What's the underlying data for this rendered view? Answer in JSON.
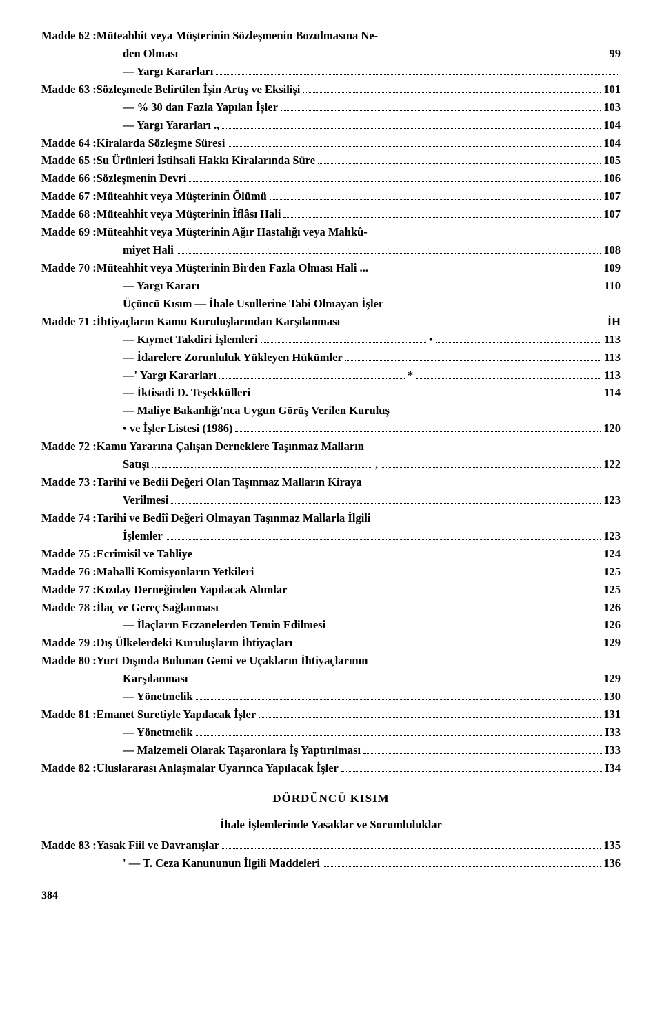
{
  "entries": [
    {
      "type": "two-line",
      "label": "Madde 62 :",
      "text": "Müteahhit veya Müşterinin Sözleşmenin Bozulmasına Ne-",
      "text2": "den Olması",
      "page": "99",
      "indent": 0
    },
    {
      "type": "sub",
      "text": "— Yargı Kararları",
      "page": "",
      "indent": 1
    },
    {
      "type": "row",
      "label": "Madde 63 :",
      "text": "Sözleşmede Belirtilen İşin Artış ve Eksilişi",
      "page": "101",
      "indent": 0
    },
    {
      "type": "sub",
      "text": "— % 30 dan Fazla Yapılan İşler",
      "page": "103",
      "indent": 1
    },
    {
      "type": "sub",
      "text": "— Yargı Yararları .,",
      "page": "104",
      "indent": 1
    },
    {
      "type": "row",
      "label": "Madde 64 :",
      "text": "Kiralarda Sözleşme Süresi",
      "page": "104",
      "indent": 0
    },
    {
      "type": "row",
      "label": "Madde 65 :",
      "text": "Su Ürünleri İstihsali Hakkı Kiralarında Süre",
      "page": "105",
      "indent": 0
    },
    {
      "type": "row",
      "label": "Madde 66 :",
      "text": "Sözleşmenin Devri",
      "page": "106",
      "indent": 0
    },
    {
      "type": "row",
      "label": "Madde 67 :",
      "text": "Müteahhit veya Müşterinin Ölümü",
      "page": "107",
      "indent": 0
    },
    {
      "type": "row",
      "label": "Madde 68 :",
      "text": "Müteahhit veya Müşterinin İflâsı Hali",
      "page": "107",
      "indent": 0
    },
    {
      "type": "two-line",
      "label": "Madde 69 :",
      "text": "Müteahhit veya Müşterinin Ağır Hastalığı veya Mahkû-",
      "text2": "miyet Hali",
      "page": "108",
      "indent": 0
    },
    {
      "type": "row",
      "label": "Madde 70 :",
      "text": "Müteahhit veya Müşterinin Birden Fazla Olması Hali ...",
      "page": "109",
      "indent": 0,
      "nodots": true
    },
    {
      "type": "sub",
      "text": "— Yargı Kararı",
      "page": "110",
      "indent": 1
    },
    {
      "type": "sub-center",
      "text": "Üçüncü Kısım — İhale Usullerine Tabi Olmayan İşler"
    },
    {
      "type": "row",
      "label": "Madde 71 :",
      "text": "İhtiyaçların Kamu Kuruluşlarından Karşılanması",
      "page": "İH",
      "indent": 0
    },
    {
      "type": "sub",
      "text": "— Kıymet Takdiri İşlemleri",
      "page": "113",
      "indent": 1,
      "extra": "•"
    },
    {
      "type": "sub",
      "text": "— İdarelere Zorunluluk Yükleyen Hükümler",
      "page": "113",
      "indent": 1
    },
    {
      "type": "sub",
      "text": "—' Yargı Kararları",
      "page": "113",
      "indent": 1,
      "extra": "*"
    },
    {
      "type": "sub",
      "text": "— İktisadi D. Teşekkülleri",
      "page": "114",
      "indent": 1
    },
    {
      "type": "sub-noline",
      "text": "— Maliye Bakanlığı'nca Uygun Görüş Verilen Kuruluş",
      "indent": 1
    },
    {
      "type": "sub",
      "text": "   • ve İşler Listesi (1986)",
      "page": "120",
      "indent": 1
    },
    {
      "type": "two-line",
      "label": "Madde 72 :",
      "text": "Kamu Yararına Çalışan Derneklere Taşınmaz Malların",
      "text2": "Satışı",
      "page": "122",
      "indent": 0,
      "extra": ","
    },
    {
      "type": "two-line",
      "label": "Madde 73 :",
      "text": "Tarihi ve Bedii Değeri Olan Taşınmaz Malların Kiraya",
      "text2": "Verilmesi",
      "page": "123",
      "indent": 0
    },
    {
      "type": "two-line",
      "label": "Madde 74 :",
      "text": "Tarihi ve Bedîî Değeri Olmayan Taşınmaz Mallarla İlgili",
      "text2": "İşlemler",
      "page": "123",
      "indent": 0
    },
    {
      "type": "row",
      "label": "Madde 75 :",
      "text": "Ecrimisil ve Tahliye",
      "page": "124",
      "indent": 0
    },
    {
      "type": "row",
      "label": "Madde 76 :",
      "text": "Mahalli Komisyonların Yetkileri",
      "page": "125",
      "indent": 0
    },
    {
      "type": "row",
      "label": "Madde 77 :",
      "text": "Kızılay Derneğinden Yapılacak Alımlar",
      "page": "125",
      "indent": 0
    },
    {
      "type": "row",
      "label": "Madde 78 :",
      "text": "İlaç ve Gereç Sağlanması",
      "page": "126",
      "indent": 0
    },
    {
      "type": "sub",
      "text": "— İlaçların Eczanelerden Temin Edilmesi",
      "page": "126",
      "indent": 1
    },
    {
      "type": "row",
      "label": "Madde 79 :",
      "text": "Dış Ülkelerdeki Kuruluşların İhtiyaçları",
      "page": "129",
      "indent": 0
    },
    {
      "type": "two-line",
      "label": "Madde 80 :",
      "text": "Yurt Dışında Bulunan Gemi ve Uçakların İhtiyaçlarının",
      "text2": "Karşılanması",
      "page": "129",
      "indent": 0
    },
    {
      "type": "sub",
      "text": "— Yönetmelik",
      "page": "130",
      "indent": 1
    },
    {
      "type": "row",
      "label": "Madde 81 :",
      "text": "Emanet Suretiyle Yapılacak İşler",
      "page": "131",
      "indent": 0
    },
    {
      "type": "sub",
      "text": "— Yönetmelik",
      "page": "I33",
      "indent": 1
    },
    {
      "type": "sub",
      "text": "— Malzemeli Olarak Taşaronlara İş Yaptırılması",
      "page": "I33",
      "indent": 1
    },
    {
      "type": "row",
      "label": "Madde 82 :",
      "text": "Uluslararası Anlaşmalar Uyarınca Yapılacak İşler",
      "page": "I34",
      "indent": 0
    }
  ],
  "section4_heading": "DÖRDÜNCÜ KISIM",
  "section4_sub": "İhale İşlemlerinde Yasaklar ve Sorumluluklar",
  "section4_entries": [
    {
      "type": "row",
      "label": "Madde 83 :",
      "text": "Yasak Fiil ve Davranışlar",
      "page": "135",
      "indent": 0
    },
    {
      "type": "sub",
      "text": "'     — T. Ceza Kanununun İlgili Maddeleri",
      "page": "136",
      "indent": 1
    }
  ],
  "footer_page": "384"
}
